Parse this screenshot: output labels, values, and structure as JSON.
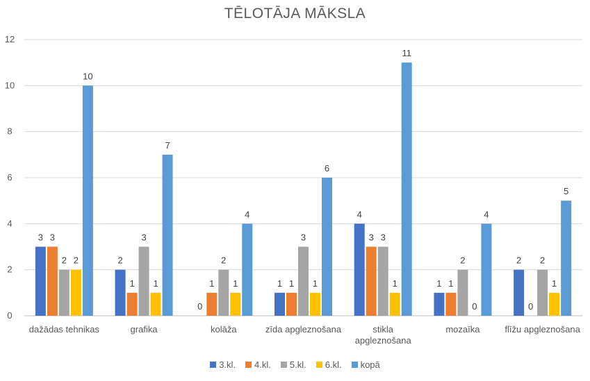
{
  "chart_data": {
    "type": "bar",
    "title": "TĒLOTĀJA MĀKSLA",
    "xlabel": "",
    "ylabel": "",
    "ylim": [
      0,
      12
    ],
    "yticks": [
      0,
      2,
      4,
      6,
      8,
      10,
      12
    ],
    "grid": true,
    "legend_position": "bottom",
    "categories": [
      "dažādas tehnikas",
      "grafika",
      "kolāža",
      "zīda apgleznošana",
      "stikla apgleznošana",
      "mozaīka",
      "flīžu apgleznošana"
    ],
    "series": [
      {
        "name": "3.kl.",
        "color": "#4472c4",
        "values": [
          3,
          2,
          0,
          1,
          4,
          1,
          2
        ]
      },
      {
        "name": "4.kl.",
        "color": "#ed7d31",
        "values": [
          3,
          1,
          1,
          1,
          3,
          1,
          0
        ]
      },
      {
        "name": "5.kl.",
        "color": "#a5a5a5",
        "values": [
          2,
          3,
          2,
          3,
          3,
          2,
          2
        ]
      },
      {
        "name": "6.kl.",
        "color": "#ffc000",
        "values": [
          2,
          1,
          1,
          1,
          1,
          0,
          1
        ]
      },
      {
        "name": "kopā",
        "color": "#5b9bd5",
        "values": [
          10,
          7,
          4,
          6,
          11,
          4,
          5
        ]
      }
    ]
  }
}
